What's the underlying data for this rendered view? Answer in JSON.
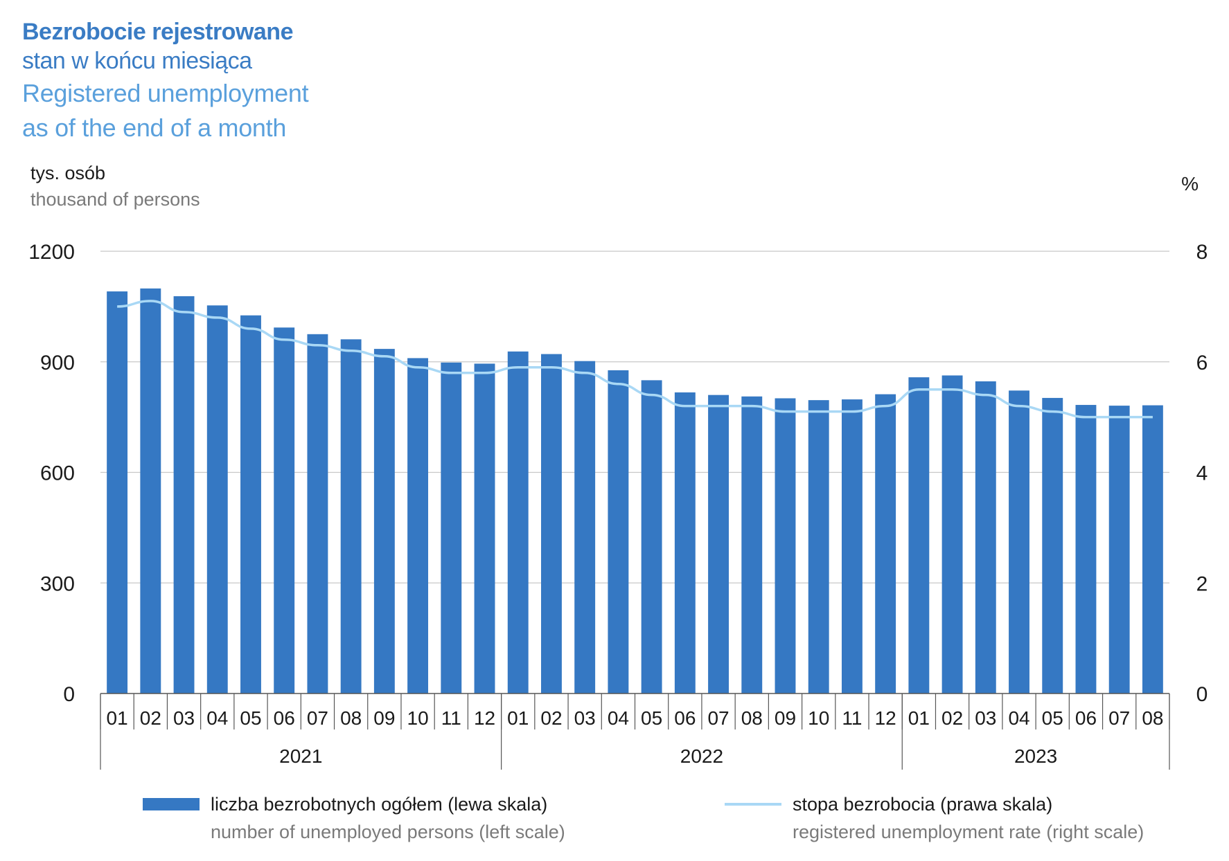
{
  "title": "Bezrobocie rejestrowane",
  "subtitle_pl": "stan w końcu miesiąca",
  "title_en": "Registered unemployment",
  "subtitle_en": "as of the end of a month",
  "left_unit_pl": "tys. osób",
  "left_unit_en": "thousand of persons",
  "right_unit": "%",
  "legend": {
    "bars_pl": "liczba bezrobotnych ogółem (lewa skala)",
    "bars_en": "number of unemployed persons (left scale)",
    "line_pl": "stopa bezrobocia (prawa skala)",
    "line_en": "registered unemployment rate (right scale)"
  },
  "colors": {
    "bars": "#3578c3",
    "line": "#a9d8f5",
    "title": "#3a7cc4",
    "title_en": "#5aa0dc"
  },
  "chart_data": {
    "type": "bar",
    "categories": [
      "01",
      "02",
      "03",
      "04",
      "05",
      "06",
      "07",
      "08",
      "09",
      "10",
      "11",
      "12",
      "01",
      "02",
      "03",
      "04",
      "05",
      "06",
      "07",
      "08",
      "09",
      "10",
      "11",
      "12",
      "01",
      "02",
      "03",
      "04",
      "05",
      "06",
      "07",
      "08"
    ],
    "groups": [
      {
        "label": "2021",
        "count": 12
      },
      {
        "label": "2022",
        "count": 12
      },
      {
        "label": "2023",
        "count": 8
      }
    ],
    "series": [
      {
        "name": "liczba bezrobotnych ogółem (lewa skala)",
        "type": "bar",
        "axis": "left",
        "values": [
          1091,
          1099,
          1078,
          1053,
          1026,
          993,
          975,
          961,
          935,
          910,
          898,
          895,
          928,
          921,
          902,
          877,
          850,
          817,
          810,
          806,
          801,
          796,
          798,
          812,
          858,
          863,
          847,
          822,
          802,
          783,
          781,
          782
        ]
      },
      {
        "name": "stopa bezrobocia (prawa skala)",
        "type": "line",
        "axis": "right",
        "values": [
          7.0,
          7.1,
          6.9,
          6.8,
          6.6,
          6.4,
          6.3,
          6.2,
          6.1,
          5.9,
          5.8,
          5.8,
          5.9,
          5.9,
          5.8,
          5.6,
          5.4,
          5.2,
          5.2,
          5.2,
          5.1,
          5.1,
          5.1,
          5.2,
          5.5,
          5.5,
          5.4,
          5.2,
          5.1,
          5.0,
          5.0,
          5.0
        ]
      }
    ],
    "left_axis": {
      "ylim": [
        0,
        1200
      ],
      "ticks": [
        "0",
        "300",
        "600",
        "900",
        "1200"
      ]
    },
    "right_axis": {
      "ylim": [
        0,
        8
      ],
      "ticks": [
        "0",
        "2",
        "4",
        "6",
        "8"
      ]
    },
    "grid": true
  }
}
